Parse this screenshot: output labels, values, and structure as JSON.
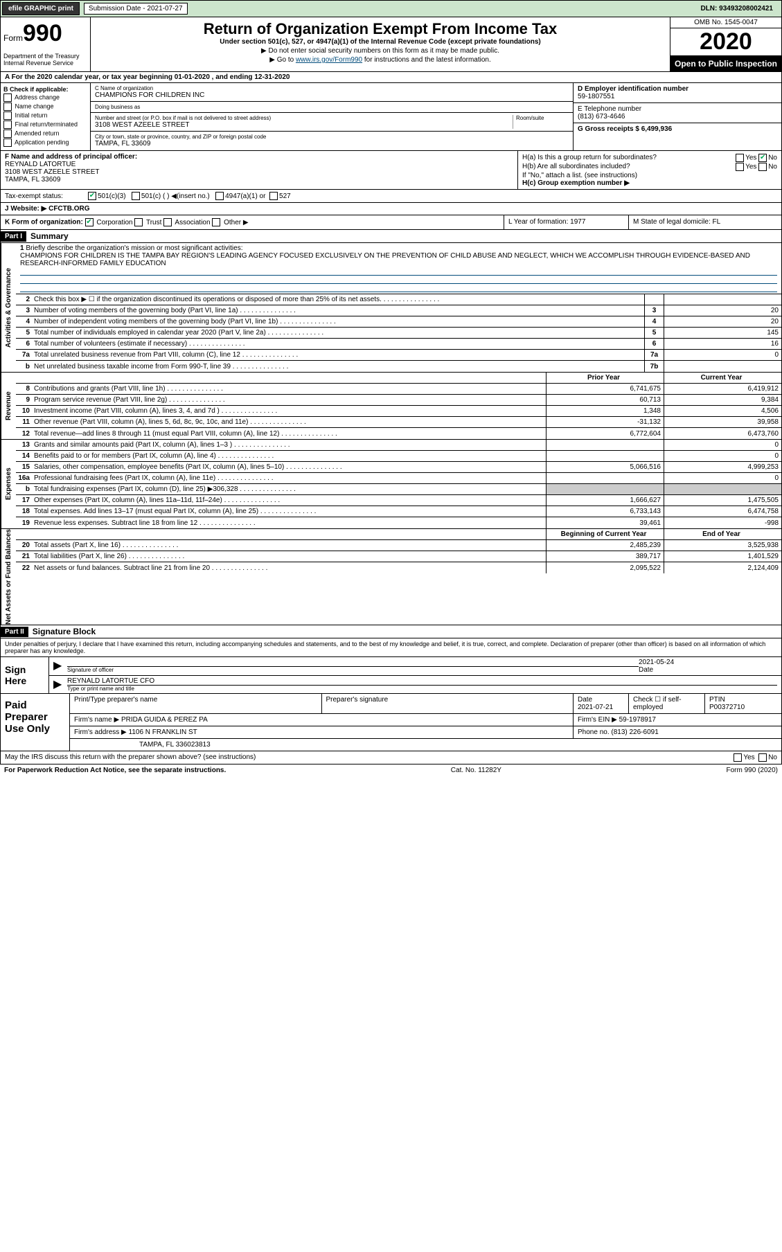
{
  "topbar": {
    "efile": "efile GRAPHIC print",
    "sub_label": "Submission Date - 2021-07-27",
    "dln": "DLN: 93493208002421"
  },
  "header": {
    "form_word": "Form",
    "form_num": "990",
    "dept": "Department of the Treasury\nInternal Revenue Service",
    "title": "Return of Organization Exempt From Income Tax",
    "sub": "Under section 501(c), 527, or 4947(a)(1) of the Internal Revenue Code (except private foundations)",
    "line1": "▶ Do not enter social security numbers on this form as it may be made public.",
    "line2_pre": "▶ Go to ",
    "line2_link": "www.irs.gov/Form990",
    "line2_post": " for instructions and the latest information.",
    "omb": "OMB No. 1545-0047",
    "year": "2020",
    "open": "Open to Public Inspection"
  },
  "line_a": "A For the 2020 calendar year, or tax year beginning 01-01-2020   , and ending 12-31-2020",
  "section_b": {
    "hdr": "B Check if applicable:",
    "opts": [
      "Address change",
      "Name change",
      "Initial return",
      "Final return/terminated",
      "Amended return",
      "Application pending"
    ]
  },
  "section_c": {
    "name_lbl": "C Name of organization",
    "name": "CHAMPIONS FOR CHILDREN INC",
    "dba_lbl": "Doing business as",
    "dba": "",
    "addr_lbl": "Number and street (or P.O. box if mail is not delivered to street address)",
    "room_lbl": "Room/suite",
    "addr": "3108 WEST AZEELE STREET",
    "city_lbl": "City or town, state or province, country, and ZIP or foreign postal code",
    "city": "TAMPA, FL  33609"
  },
  "section_d": {
    "ein_lbl": "D Employer identification number",
    "ein": "59-1807551",
    "tel_lbl": "E Telephone number",
    "tel": "(813) 673-4646",
    "gross_lbl": "G Gross receipts $ 6,499,936"
  },
  "section_f": {
    "lbl": "F Name and address of principal officer:",
    "name": "REYNALD LATORTUE",
    "addr": "3108 WEST AZEELE STREET",
    "city": "TAMPA, FL  33609"
  },
  "section_h": {
    "ha": "H(a)  Is this a group return for subordinates?",
    "ha_yes": "Yes",
    "ha_no": "No",
    "hb": "H(b)  Are all subordinates included?",
    "hb_yes": "Yes",
    "hb_no": "No",
    "hb_note": "If \"No,\" attach a list. (see instructions)",
    "hc": "H(c)  Group exemption number ▶"
  },
  "tax_status": {
    "lbl": "Tax-exempt status:",
    "o1": "501(c)(3)",
    "o2": "501(c) (  ) ◀(insert no.)",
    "o3": "4947(a)(1) or",
    "o4": "527"
  },
  "website": {
    "lbl": "J  Website: ▶",
    "val": "CFCTB.ORG"
  },
  "kml": {
    "k_lbl": "K Form of organization:",
    "k_opts": [
      "Corporation",
      "Trust",
      "Association",
      "Other ▶"
    ],
    "l": "L Year of formation: 1977",
    "m": "M State of legal domicile: FL"
  },
  "part1": {
    "hdr": "Part I",
    "title": "Summary"
  },
  "mission": {
    "num": "1",
    "lbl": "Briefly describe the organization's mission or most significant activities:",
    "text": "CHAMPIONS FOR CHILDREN IS THE TAMPA BAY REGION'S LEADING AGENCY FOCUSED EXCLUSIVELY ON THE PREVENTION OF CHILD ABUSE AND NEGLECT, WHICH WE ACCOMPLISH THROUGH EVIDENCE-BASED AND RESEARCH-INFORMED FAMILY EDUCATION"
  },
  "sections": {
    "governance": {
      "label": "Activities & Governance",
      "rows": [
        {
          "n": "2",
          "d": "Check this box ▶ ☐  if the organization discontinued its operations or disposed of more than 25% of its net assets.",
          "box": "",
          "v": ""
        },
        {
          "n": "3",
          "d": "Number of voting members of the governing body (Part VI, line 1a)",
          "box": "3",
          "v": "20"
        },
        {
          "n": "4",
          "d": "Number of independent voting members of the governing body (Part VI, line 1b)",
          "box": "4",
          "v": "20"
        },
        {
          "n": "5",
          "d": "Total number of individuals employed in calendar year 2020 (Part V, line 2a)",
          "box": "5",
          "v": "145"
        },
        {
          "n": "6",
          "d": "Total number of volunteers (estimate if necessary)",
          "box": "6",
          "v": "16"
        },
        {
          "n": "7a",
          "d": "Total unrelated business revenue from Part VIII, column (C), line 12",
          "box": "7a",
          "v": "0"
        },
        {
          "n": "b",
          "d": "Net unrelated business taxable income from Form 990-T, line 39",
          "box": "7b",
          "v": ""
        }
      ]
    },
    "revenue": {
      "label": "Revenue",
      "hdr_prior": "Prior Year",
      "hdr_curr": "Current Year",
      "rows": [
        {
          "n": "8",
          "d": "Contributions and grants (Part VIII, line 1h)",
          "p": "6,741,675",
          "c": "6,419,912"
        },
        {
          "n": "9",
          "d": "Program service revenue (Part VIII, line 2g)",
          "p": "60,713",
          "c": "9,384"
        },
        {
          "n": "10",
          "d": "Investment income (Part VIII, column (A), lines 3, 4, and 7d )",
          "p": "1,348",
          "c": "4,506"
        },
        {
          "n": "11",
          "d": "Other revenue (Part VIII, column (A), lines 5, 6d, 8c, 9c, 10c, and 11e)",
          "p": "-31,132",
          "c": "39,958"
        },
        {
          "n": "12",
          "d": "Total revenue—add lines 8 through 11 (must equal Part VIII, column (A), line 12)",
          "p": "6,772,604",
          "c": "6,473,760"
        }
      ]
    },
    "expenses": {
      "label": "Expenses",
      "rows": [
        {
          "n": "13",
          "d": "Grants and similar amounts paid (Part IX, column (A), lines 1–3 )",
          "p": "",
          "c": "0"
        },
        {
          "n": "14",
          "d": "Benefits paid to or for members (Part IX, column (A), line 4)",
          "p": "",
          "c": "0"
        },
        {
          "n": "15",
          "d": "Salaries, other compensation, employee benefits (Part IX, column (A), lines 5–10)",
          "p": "5,066,516",
          "c": "4,999,253"
        },
        {
          "n": "16a",
          "d": "Professional fundraising fees (Part IX, column (A), line 11e)",
          "p": "",
          "c": "0"
        },
        {
          "n": "b",
          "d": "Total fundraising expenses (Part IX, column (D), line 25) ▶306,328",
          "p": "shade",
          "c": "shade"
        },
        {
          "n": "17",
          "d": "Other expenses (Part IX, column (A), lines 11a–11d, 11f–24e)",
          "p": "1,666,627",
          "c": "1,475,505"
        },
        {
          "n": "18",
          "d": "Total expenses. Add lines 13–17 (must equal Part IX, column (A), line 25)",
          "p": "6,733,143",
          "c": "6,474,758"
        },
        {
          "n": "19",
          "d": "Revenue less expenses. Subtract line 18 from line 12",
          "p": "39,461",
          "c": "-998"
        }
      ]
    },
    "netassets": {
      "label": "Net Assets or Fund Balances",
      "hdr_prior": "Beginning of Current Year",
      "hdr_curr": "End of Year",
      "rows": [
        {
          "n": "20",
          "d": "Total assets (Part X, line 16)",
          "p": "2,485,239",
          "c": "3,525,938"
        },
        {
          "n": "21",
          "d": "Total liabilities (Part X, line 26)",
          "p": "389,717",
          "c": "1,401,529"
        },
        {
          "n": "22",
          "d": "Net assets or fund balances. Subtract line 21 from line 20",
          "p": "2,095,522",
          "c": "2,124,409"
        }
      ]
    }
  },
  "part2": {
    "hdr": "Part II",
    "title": "Signature Block"
  },
  "sig": {
    "intro": "Under penalties of perjury, I declare that I have examined this return, including accompanying schedules and statements, and to the best of my knowledge and belief, it is true, correct, and complete. Declaration of preparer (other than officer) is based on all information of which preparer has any knowledge.",
    "sign_here": "Sign Here",
    "sig_lbl": "Signature of officer",
    "date_lbl": "Date",
    "date": "2021-05-24",
    "name": "REYNALD LATORTUE  CFO",
    "name_lbl": "Type or print name and title"
  },
  "paid": {
    "lbl": "Paid Preparer Use Only",
    "r1": {
      "c1": "Print/Type preparer's name",
      "c2": "Preparer's signature",
      "c3": "Date",
      "c3v": "2021-07-21",
      "c4": "Check ☐ if self-employed",
      "c5": "PTIN",
      "c5v": "P00372710"
    },
    "r2": {
      "c1": "Firm's name      ▶ PRIDA GUIDA & PEREZ PA",
      "c2": "Firm's EIN ▶ 59-1978917"
    },
    "r3": {
      "c1": "Firm's address ▶ 1106 N FRANKLIN ST",
      "c2": "Phone no. (813) 226-6091"
    },
    "r4": {
      "c1": "TAMPA, FL  336023813"
    }
  },
  "discuss": {
    "q": "May the IRS discuss this return with the preparer shown above? (see instructions)",
    "yes": "Yes",
    "no": "No"
  },
  "footer": {
    "l": "For Paperwork Reduction Act Notice, see the separate instructions.",
    "m": "Cat. No. 11282Y",
    "r": "Form 990 (2020)"
  }
}
